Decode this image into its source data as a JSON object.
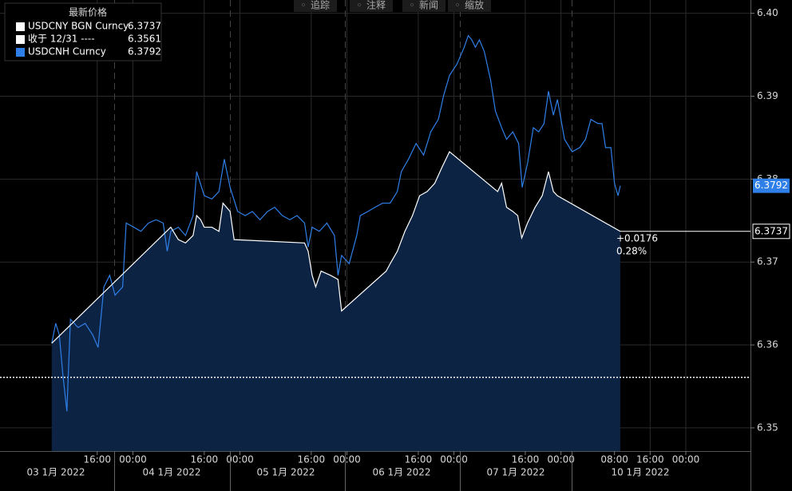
{
  "chart_data": {
    "type": "line",
    "legend_title": "最新价格",
    "toolbar": [
      "追踪",
      "注释",
      "新闻",
      "缩放"
    ],
    "series": [
      {
        "name": "USDCNY BGN Curncy",
        "color": "#ffffff",
        "area_color": "#0c2344",
        "x": [
          5.8,
          32.5,
          34.2,
          35.8,
          37.5,
          38.3,
          39.2,
          40.0,
          41.7,
          43.3,
          44.2,
          45.8,
          46.7,
          62.5,
          63.3,
          64.2,
          65.0,
          66.2,
          68.3,
          70.0,
          70.8,
          80.8,
          81.7,
          83.3,
          85.0,
          86.7,
          88.3,
          90.0,
          91.7,
          93.3,
          95.0,
          105.8,
          106.7,
          107.8,
          109.2,
          110.3,
          111.2,
          112.5,
          114.2,
          115.8,
          117.2,
          118.3,
          119.2,
          133.3
        ],
        "values": [
          6.3602,
          6.3742,
          6.3727,
          6.3723,
          6.3732,
          6.3756,
          6.3751,
          6.3742,
          6.3742,
          6.3737,
          6.3771,
          6.3761,
          6.3727,
          6.3723,
          6.3713,
          6.3684,
          6.367,
          6.3689,
          6.3684,
          6.3679,
          6.3641,
          6.3689,
          6.3698,
          6.3713,
          6.3737,
          6.3756,
          6.378,
          6.3785,
          6.3795,
          6.3814,
          6.3833,
          6.3785,
          6.3795,
          6.3766,
          6.3761,
          6.3756,
          6.3729,
          6.3747,
          6.3766,
          6.378,
          6.3809,
          6.3785,
          6.378,
          6.3737
        ]
      },
      {
        "name": "USDCNH Curncy",
        "color": "#2f7fe8",
        "x": [
          5.8,
          6.7,
          7.5,
          8.3,
          9.2,
          10.0,
          11.7,
          13.3,
          15.0,
          16.2,
          17.5,
          18.8,
          20.0,
          21.7,
          22.5,
          24.2,
          25.8,
          27.5,
          29.2,
          30.8,
          31.7,
          32.5,
          34.2,
          35.8,
          37.5,
          38.3,
          40.0,
          41.7,
          43.3,
          44.5,
          45.8,
          47.5,
          49.2,
          50.8,
          52.5,
          54.2,
          55.8,
          57.5,
          59.2,
          60.8,
          62.5,
          63.3,
          64.2,
          65.8,
          67.5,
          69.2,
          70.0,
          70.8,
          72.5,
          74.2,
          75.0,
          76.7,
          78.3,
          80.0,
          81.7,
          83.3,
          84.2,
          85.8,
          87.5,
          89.2,
          90.8,
          92.5,
          93.7,
          95.0,
          96.7,
          98.3,
          99.2,
          100.0,
          100.8,
          101.7,
          102.8,
          104.2,
          105.3,
          106.7,
          107.8,
          109.2,
          110.5,
          111.3,
          112.5,
          113.8,
          115.0,
          116.2,
          117.2,
          118.3,
          119.2,
          120.8,
          122.5,
          124.2,
          125.5,
          126.7,
          128.3,
          129.2,
          130.0,
          131.2,
          132.0,
          132.8,
          133.3
        ],
        "values": [
          6.3602,
          6.3626,
          6.3612,
          6.3564,
          6.352,
          6.3631,
          6.3621,
          6.3626,
          6.3612,
          6.3597,
          6.367,
          6.3684,
          6.366,
          6.367,
          6.3747,
          6.3742,
          6.3737,
          6.3747,
          6.3751,
          6.3747,
          6.3713,
          6.3737,
          6.3742,
          6.3732,
          6.3756,
          6.3809,
          6.378,
          6.3776,
          6.3785,
          6.3824,
          6.379,
          6.3761,
          6.3756,
          6.3761,
          6.3751,
          6.3761,
          6.3766,
          6.3756,
          6.3751,
          6.3756,
          6.3747,
          6.3718,
          6.3742,
          6.3737,
          6.3747,
          6.3732,
          6.3684,
          6.3708,
          6.3698,
          6.3732,
          6.3756,
          6.3761,
          6.3766,
          6.3771,
          6.3771,
          6.3785,
          6.3809,
          6.3824,
          6.3843,
          6.3829,
          6.3857,
          6.3872,
          6.3901,
          6.3925,
          6.3939,
          6.3959,
          6.3973,
          6.3968,
          6.3959,
          6.3968,
          6.3954,
          6.392,
          6.3882,
          6.3862,
          6.3848,
          6.3857,
          6.3843,
          6.379,
          6.3819,
          6.3862,
          6.3857,
          6.3867,
          6.3906,
          6.3877,
          6.3896,
          6.3848,
          6.3833,
          6.3838,
          6.3848,
          6.3872,
          6.3867,
          6.3867,
          6.3838,
          6.3838,
          6.3795,
          6.378,
          6.3792
        ]
      }
    ],
    "reference_line": {
      "name": "收于 12/31 ----",
      "value": 6.3561,
      "color": "#ffffff"
    },
    "annotations": [
      "+0.0176",
      "0.28%"
    ],
    "xlim": [
      -5.8,
      162.5
    ],
    "xticks": [
      {
        "value": 16,
        "label": "16:00"
      },
      {
        "value": 24,
        "label": "00:00"
      },
      {
        "value": 40,
        "label": "16:00"
      },
      {
        "value": 48,
        "label": "00:00"
      },
      {
        "value": 64,
        "label": "16:00"
      },
      {
        "value": 72,
        "label": "00:00"
      },
      {
        "value": 88,
        "label": "16:00"
      },
      {
        "value": 96,
        "label": "00:00"
      },
      {
        "value": 112,
        "label": "16:00"
      },
      {
        "value": 120,
        "label": "00:00"
      },
      {
        "value": 132,
        "label": "08:00"
      },
      {
        "value": 140,
        "label": "16:00"
      },
      {
        "value": 148,
        "label": "00:00"
      }
    ],
    "x_group_labels": [
      "03 1月 2022",
      "04 1月 2022",
      "05 1月 2022",
      "06 1月 2022",
      "07 1月 2022",
      "10 1月 2022"
    ],
    "ylim": [
      6.3472,
      6.4016
    ],
    "yticks": [
      6.35,
      6.36,
      6.37,
      6.38,
      6.39,
      {
        "value": 6.4,
        "label": "6.40"
      }
    ],
    "grid": true
  }
}
